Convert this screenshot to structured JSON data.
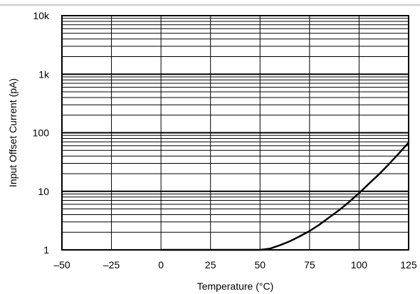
{
  "chart_data": {
    "type": "line",
    "xlabel": "Temperature (°C)",
    "ylabel": "Input Offset Current (pA)",
    "xlim": [
      -50,
      125
    ],
    "ylim": [
      1,
      10000
    ],
    "yscale": "log",
    "grid": true,
    "x_ticks": [
      {
        "value": -50,
        "label": "–50"
      },
      {
        "value": -25,
        "label": "–25"
      },
      {
        "value": 0,
        "label": "0"
      },
      {
        "value": 25,
        "label": "25"
      },
      {
        "value": 50,
        "label": "50"
      },
      {
        "value": 75,
        "label": "75"
      },
      {
        "value": 100,
        "label": "100"
      },
      {
        "value": 125,
        "label": "125"
      }
    ],
    "y_ticks": [
      {
        "value": 1,
        "label": "1"
      },
      {
        "value": 10,
        "label": "10"
      },
      {
        "value": 100,
        "label": "100"
      },
      {
        "value": 1000,
        "label": "1k"
      },
      {
        "value": 10000,
        "label": "10k"
      }
    ],
    "series": [
      {
        "color": "#000000",
        "points": [
          {
            "x": 0,
            "y": 1
          },
          {
            "x": 25,
            "y": 1
          },
          {
            "x": 50,
            "y": 1
          },
          {
            "x": 55,
            "y": 1.05
          },
          {
            "x": 60,
            "y": 1.2
          },
          {
            "x": 65,
            "y": 1.4
          },
          {
            "x": 70,
            "y": 1.7
          },
          {
            "x": 75,
            "y": 2.1
          },
          {
            "x": 80,
            "y": 2.7
          },
          {
            "x": 85,
            "y": 3.6
          },
          {
            "x": 90,
            "y": 4.8
          },
          {
            "x": 95,
            "y": 6.6
          },
          {
            "x": 100,
            "y": 9.3
          },
          {
            "x": 105,
            "y": 13.5
          },
          {
            "x": 110,
            "y": 19.5
          },
          {
            "x": 115,
            "y": 29
          },
          {
            "x": 120,
            "y": 44
          },
          {
            "x": 125,
            "y": 68
          }
        ]
      }
    ]
  }
}
